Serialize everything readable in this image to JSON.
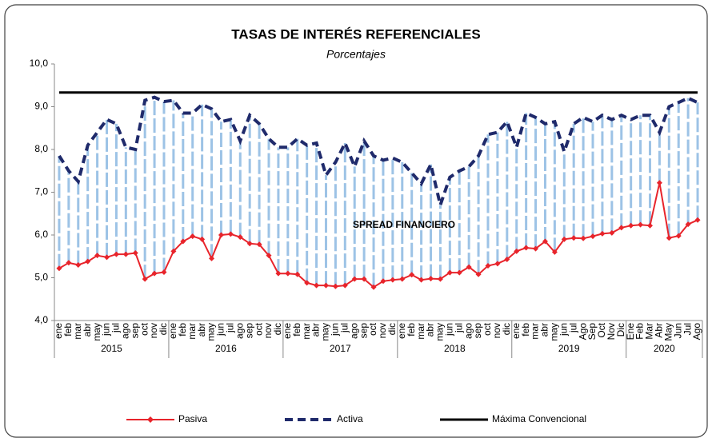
{
  "chart_data": {
    "type": "line",
    "title": "TASAS DE INTERÉS REFERENCIALES",
    "subtitle": "Porcentajes",
    "annotation": "SPREAD FINANCIERO",
    "years": [
      {
        "name": "2015",
        "months": [
          "ene",
          "feb",
          "mar",
          "abr",
          "may",
          "jun",
          "jul",
          "ago",
          "sep",
          "oct",
          "nov",
          "dic"
        ]
      },
      {
        "name": "2016",
        "months": [
          "ene",
          "feb",
          "mar",
          "abr",
          "may",
          "jun",
          "jul",
          "ago",
          "sep",
          "oct",
          "nov",
          "dic"
        ]
      },
      {
        "name": "2017",
        "months": [
          "ene",
          "feb",
          "mar",
          "abr",
          "may",
          "jun",
          "jul",
          "ago",
          "sep",
          "oct",
          "nov",
          "dic"
        ]
      },
      {
        "name": "2018",
        "months": [
          "ene",
          "feb",
          "mar",
          "abr",
          "may",
          "jun",
          "jul",
          "ago",
          "sep",
          "oct",
          "nov",
          "dic"
        ]
      },
      {
        "name": "2019",
        "months": [
          "ene",
          "feb",
          "mar",
          "abr",
          "may",
          "jun",
          "jul",
          "Ago",
          "Sep",
          "Oct",
          "Nov",
          "Dic"
        ]
      },
      {
        "name": "2020",
        "months": [
          "Ene",
          "Feb",
          "Mar",
          "Abr",
          "May",
          "Jun",
          "Jul",
          "Ago"
        ]
      }
    ],
    "ylim": [
      4,
      10
    ],
    "yticks": [
      {
        "value": 4,
        "label": "4,0"
      },
      {
        "value": 5,
        "label": "5,0"
      },
      {
        "value": 6,
        "label": "6,0"
      },
      {
        "value": 7,
        "label": "7,0"
      },
      {
        "value": 8,
        "label": "8,0"
      },
      {
        "value": 9,
        "label": "9,0"
      },
      {
        "value": 10,
        "label": "10,0"
      }
    ],
    "spread_color": "#9dc3e6",
    "series": [
      {
        "name": "Pasiva",
        "color": "#e8242b",
        "style": "solid-markers",
        "values": [
          5.22,
          5.35,
          5.3,
          5.38,
          5.52,
          5.48,
          5.55,
          5.55,
          5.58,
          4.97,
          5.1,
          5.13,
          5.62,
          5.85,
          5.97,
          5.9,
          5.45,
          6.0,
          6.02,
          5.95,
          5.8,
          5.78,
          5.52,
          5.1,
          5.1,
          5.08,
          4.88,
          4.82,
          4.82,
          4.8,
          4.82,
          4.97,
          4.97,
          4.78,
          4.92,
          4.95,
          4.97,
          5.07,
          4.95,
          4.98,
          4.97,
          5.12,
          5.12,
          5.25,
          5.08,
          5.28,
          5.33,
          5.43,
          5.62,
          5.7,
          5.68,
          5.85,
          5.6,
          5.9,
          5.93,
          5.92,
          5.97,
          6.03,
          6.05,
          6.17,
          6.22,
          6.24,
          6.22,
          7.22,
          5.93,
          5.98,
          6.25,
          6.35
        ]
      },
      {
        "name": "Activa",
        "color": "#1f2a6b",
        "style": "dashed",
        "values": [
          7.85,
          7.5,
          7.25,
          8.1,
          8.4,
          8.7,
          8.6,
          8.05,
          8.0,
          9.15,
          9.22,
          9.12,
          9.15,
          8.85,
          8.85,
          9.05,
          8.95,
          8.65,
          8.7,
          8.2,
          8.8,
          8.6,
          8.25,
          8.05,
          8.05,
          8.25,
          8.1,
          8.15,
          7.4,
          7.7,
          8.15,
          7.6,
          8.2,
          7.85,
          7.75,
          7.8,
          7.7,
          7.45,
          7.2,
          7.65,
          6.7,
          7.35,
          7.5,
          7.6,
          7.85,
          8.35,
          8.4,
          8.65,
          8.05,
          8.85,
          8.75,
          8.6,
          8.65,
          7.95,
          8.6,
          8.75,
          8.65,
          8.8,
          8.7,
          8.8,
          8.7,
          8.8,
          8.8,
          8.4,
          9.0,
          9.1,
          9.2,
          9.1
        ]
      },
      {
        "name": "Máxima Convencional",
        "color": "#000000",
        "style": "thick",
        "values": [
          9.33,
          9.33,
          9.33,
          9.33,
          9.33,
          9.33,
          9.33,
          9.33,
          9.33,
          9.33,
          9.33,
          9.33,
          9.33,
          9.33,
          9.33,
          9.33,
          9.33,
          9.33,
          9.33,
          9.33,
          9.33,
          9.33,
          9.33,
          9.33,
          9.33,
          9.33,
          9.33,
          9.33,
          9.33,
          9.33,
          9.33,
          9.33,
          9.33,
          9.33,
          9.33,
          9.33,
          9.33,
          9.33,
          9.33,
          9.33,
          9.33,
          9.33,
          9.33,
          9.33,
          9.33,
          9.33,
          9.33,
          9.33,
          9.33,
          9.33,
          9.33,
          9.33,
          9.33,
          9.33,
          9.33,
          9.33,
          9.33,
          9.33,
          9.33,
          9.33,
          9.33,
          9.33,
          9.33,
          9.33,
          9.33,
          9.33,
          9.33,
          9.33
        ]
      }
    ]
  }
}
